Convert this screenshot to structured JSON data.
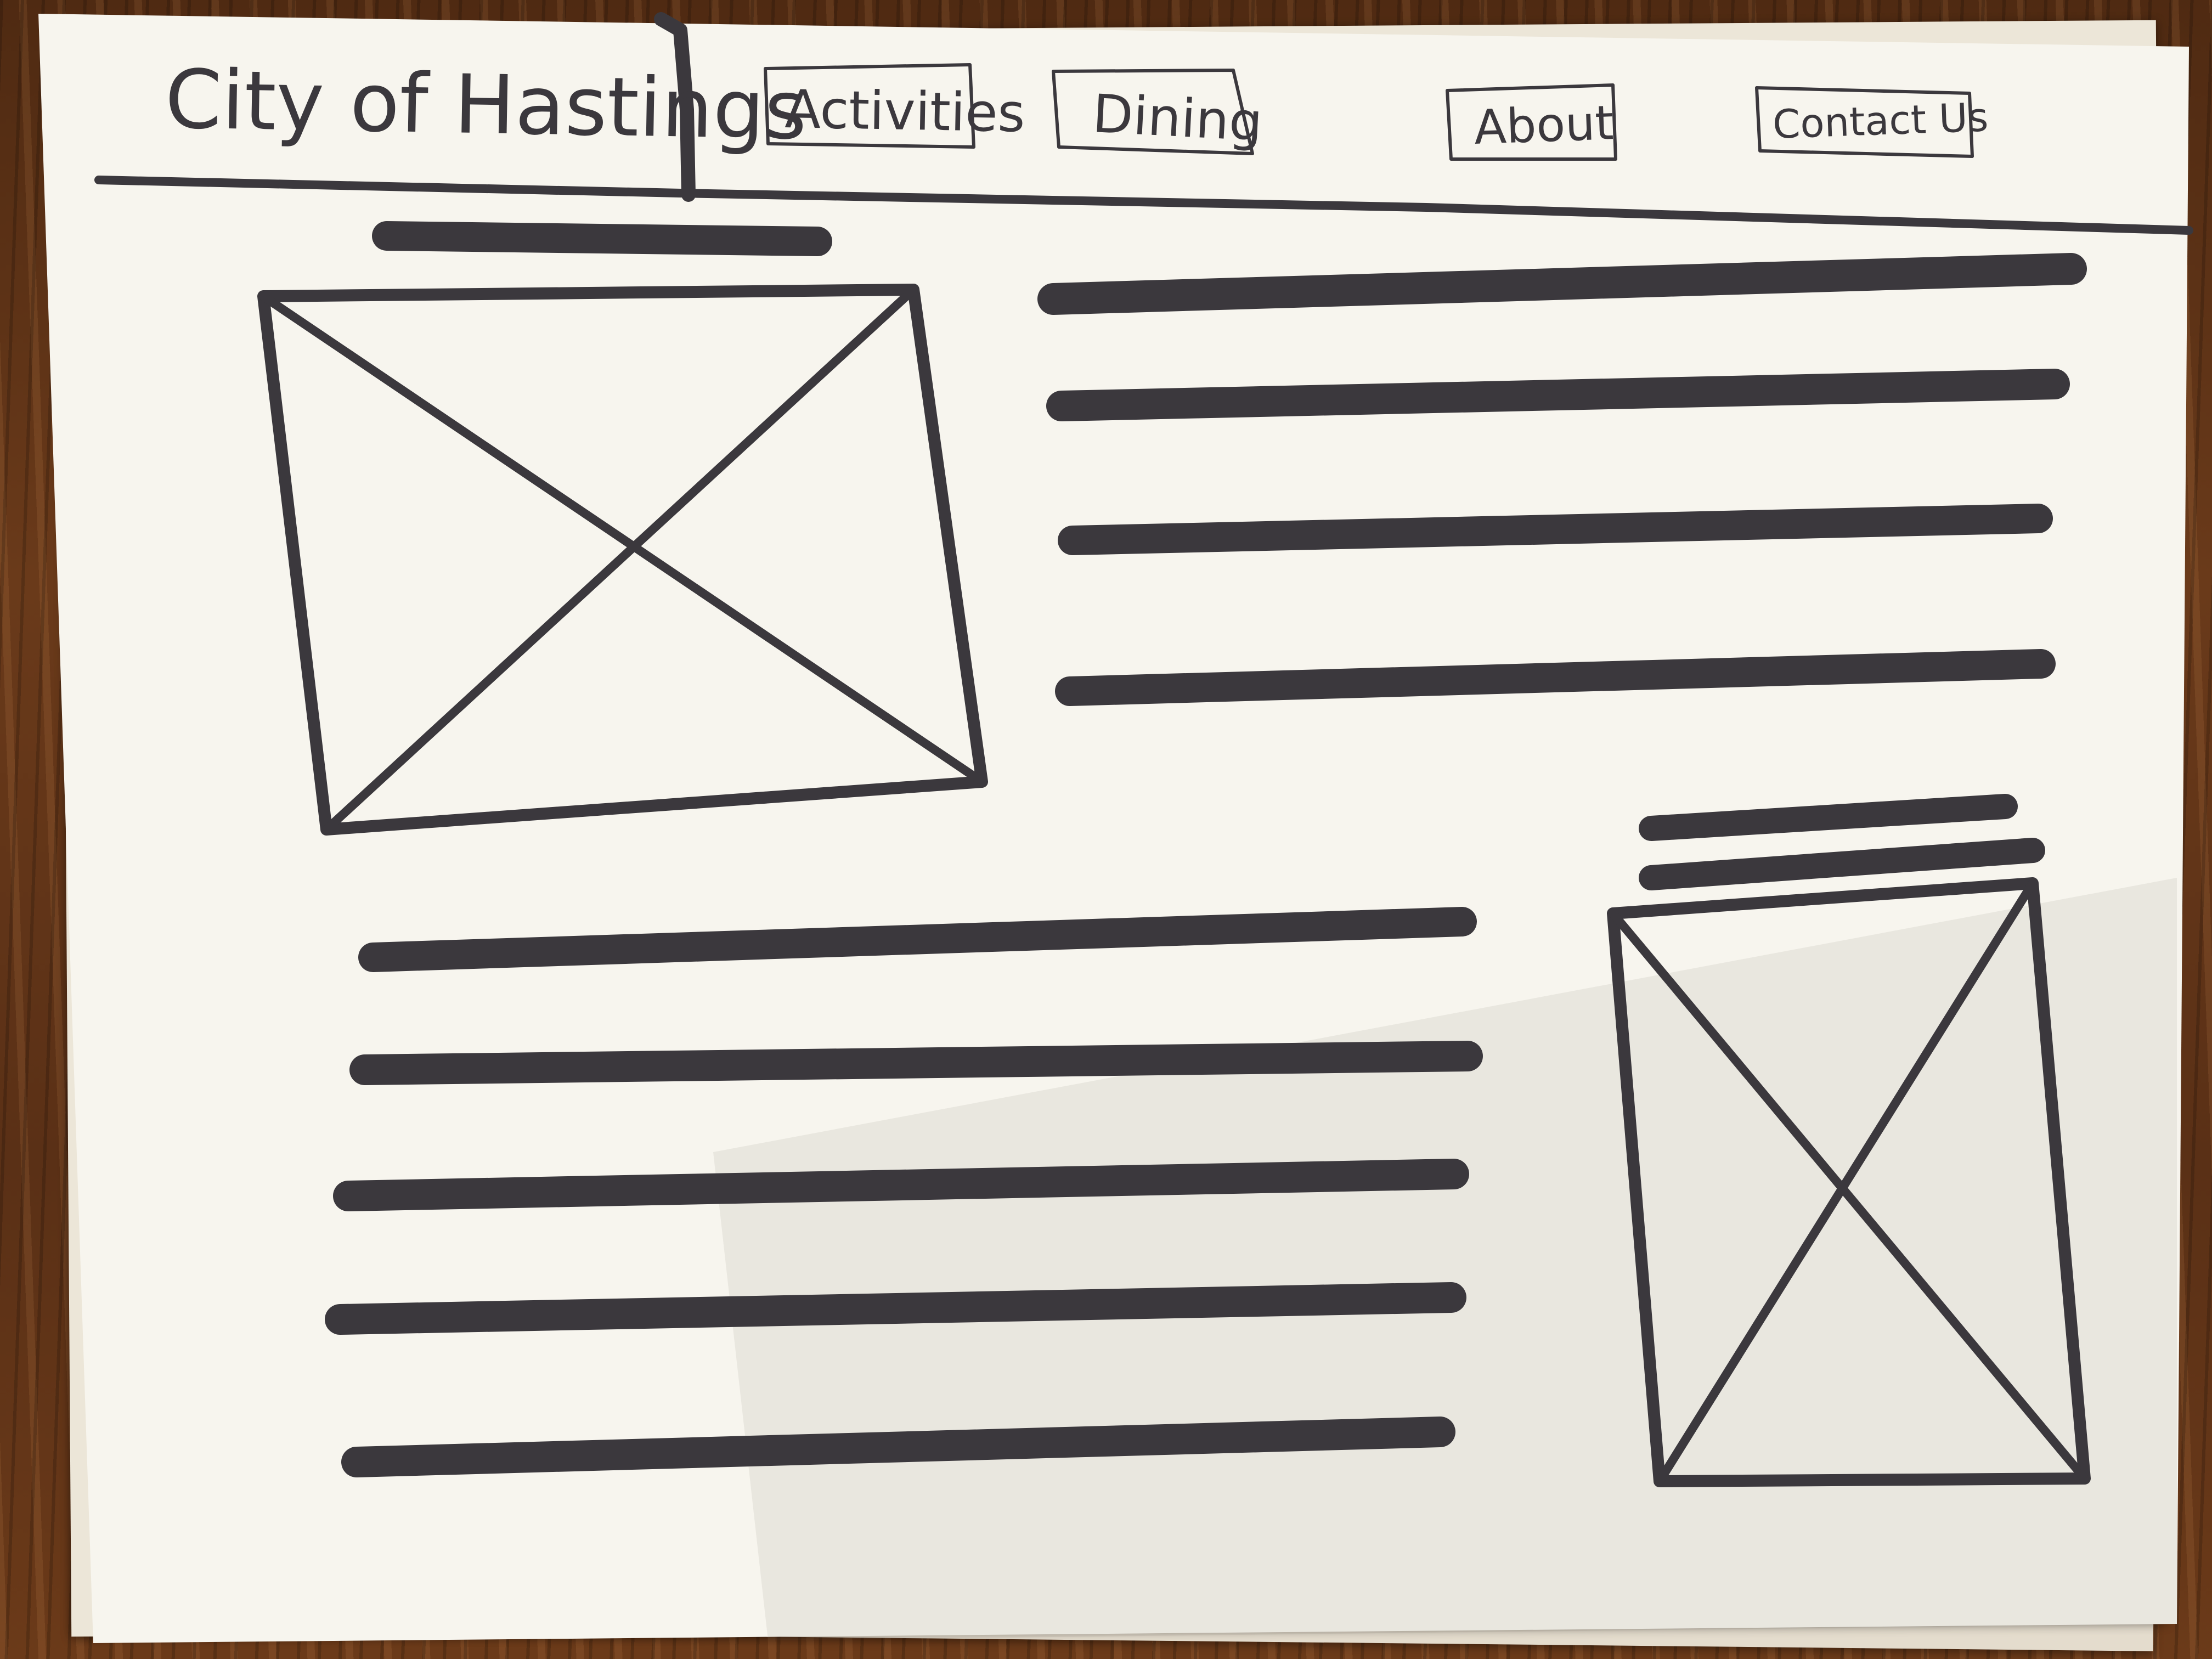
{
  "site": {
    "title": "City of Hastings"
  },
  "nav": {
    "items": [
      {
        "label": "Activities"
      },
      {
        "label": "Dining"
      },
      {
        "label": "About"
      },
      {
        "label": "Contact Us"
      }
    ]
  },
  "icons": {
    "placeholder": "image-placeholder-icon"
  },
  "colors": {
    "paper": "#f7f5ee",
    "ink": "#3b383d",
    "desk": "#5a3218"
  }
}
